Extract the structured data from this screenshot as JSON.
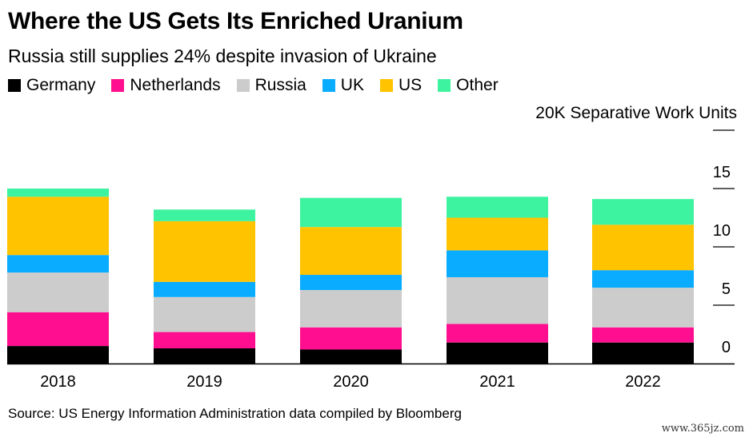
{
  "chart_data": {
    "type": "bar",
    "stacked": true,
    "title": "Where the US Gets Its Enriched Uranium",
    "subtitle": "Russia still supplies 24% despite invasion of Ukraine",
    "unit_label": "20K Separative Work Units",
    "categories": [
      "2018",
      "2019",
      "2020",
      "2021",
      "2022"
    ],
    "series": [
      {
        "name": "Germany",
        "color": "#000000",
        "values": [
          1.5,
          1.3,
          1.2,
          1.8,
          1.8
        ]
      },
      {
        "name": "Netherlands",
        "color": "#ff0f8f",
        "values": [
          2.9,
          1.4,
          1.9,
          1.6,
          1.3
        ]
      },
      {
        "name": "Russia",
        "color": "#cccccc",
        "values": [
          3.4,
          3.0,
          3.2,
          4.0,
          3.4
        ]
      },
      {
        "name": "UK",
        "color": "#09acff",
        "values": [
          1.5,
          1.3,
          1.3,
          2.3,
          1.5
        ]
      },
      {
        "name": "US",
        "color": "#ffc300",
        "values": [
          5.0,
          5.2,
          4.1,
          2.8,
          3.9
        ]
      },
      {
        "name": "Other",
        "color": "#3ef3a0",
        "values": [
          0.7,
          1.0,
          2.5,
          1.8,
          2.2
        ]
      }
    ],
    "y_ticks": [
      "0",
      "5",
      "10",
      "15"
    ],
    "ylim": [
      0,
      20
    ],
    "legend_position": "top-left",
    "grid": false
  },
  "source": "Source: US Energy Information Administration data compiled by Bloomberg",
  "watermark": "www.365jz.com"
}
